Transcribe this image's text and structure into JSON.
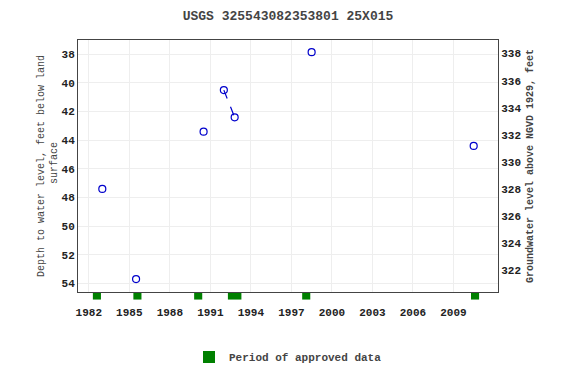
{
  "chart_data": {
    "type": "scatter",
    "title": "USGS 325543082353801 25X015",
    "ylabel": "Depth to water level, feet below land\n surface",
    "y2label": "Groundwater level above NGVD 1929, feet",
    "x": [
      1983.0,
      1985.5,
      1990.5,
      1992.0,
      1992.8,
      1998.5,
      2010.5
    ],
    "series": [
      {
        "values": [
          47.4,
          53.7,
          43.4,
          40.5,
          42.4,
          37.85,
          44.4
        ],
        "color": "#0000cc",
        "marker": "open_circle"
      },
      {
        "x": [
          1992.0,
          1992.8
        ],
        "values": [
          40.5,
          42.4
        ],
        "color": "#0000cc",
        "line_style": "dashed"
      }
    ],
    "periods": {
      "name": "Period of approved data",
      "color": "#008000",
      "spans": [
        {
          "x": 1982.3,
          "width": 0.6
        },
        {
          "x": 1985.3,
          "width": 0.6
        },
        {
          "x": 1989.8,
          "width": 0.6
        },
        {
          "x": 1992.3,
          "width": 1.0
        },
        {
          "x": 1997.8,
          "width": 0.6
        },
        {
          "x": 2010.3,
          "width": 0.6
        }
      ]
    },
    "xlim": [
      1981.2,
      2012.3
    ],
    "xticks": [
      1982,
      1985,
      1988,
      1991,
      1994,
      1997,
      2000,
      2003,
      2006,
      2009
    ],
    "ylim": [
      54.6,
      37.0
    ],
    "yticks": [
      38,
      40,
      42,
      44,
      46,
      48,
      50,
      52,
      54
    ],
    "y2lim": [
      320.4,
      339.0
    ],
    "y2ticks": [
      338,
      336,
      334,
      332,
      330,
      328,
      326,
      324,
      322
    ],
    "grid": true,
    "legend": "bottom"
  }
}
